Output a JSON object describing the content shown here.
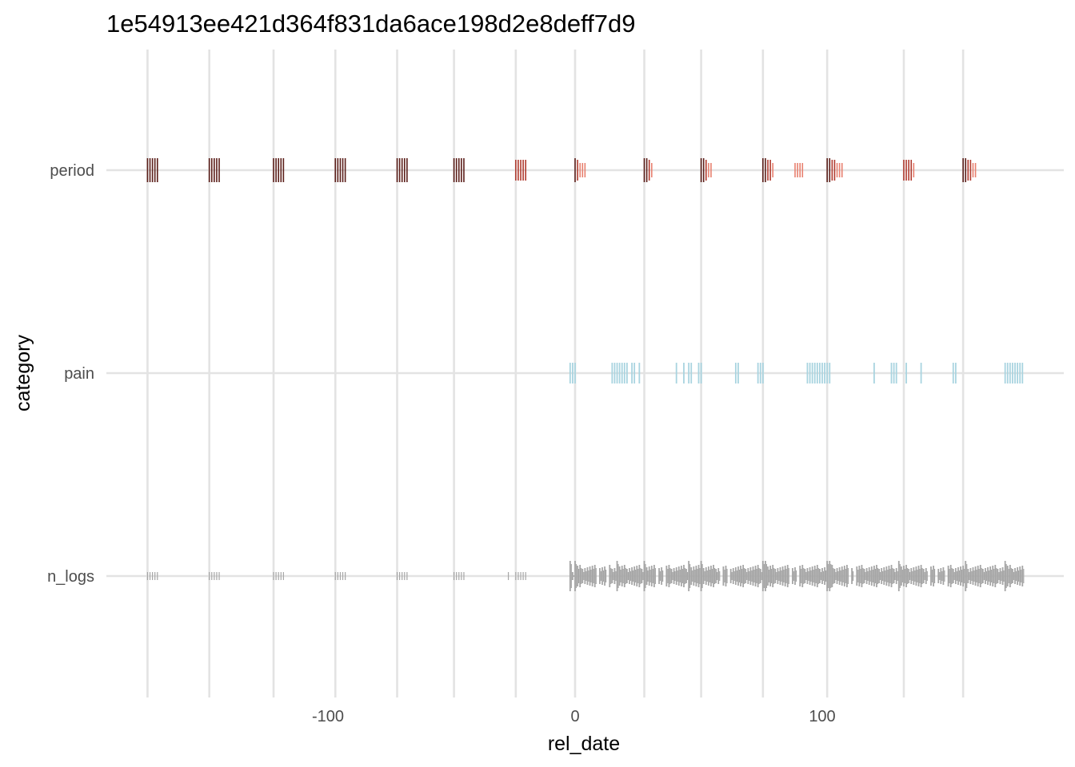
{
  "chart_data": {
    "type": "strip",
    "title": "1e54913ee421d364f831da6ace198d2e8deff7d9",
    "xlabel": "rel_date",
    "ylabel": "category",
    "categories": [
      "period",
      "pain",
      "n_logs"
    ],
    "xlim": [
      -174,
      198
    ],
    "x_ticks": [
      -100,
      0,
      100
    ],
    "x_tick_labels": [
      "-100",
      "0",
      "100"
    ],
    "cycle_starts": [
      -173,
      -148,
      -122,
      -97,
      -72,
      -49,
      -24,
      0,
      28,
      51,
      76,
      102,
      133,
      157
    ],
    "grid": true,
    "legend": "none",
    "colors": {
      "period_dark": "#5c1f1a",
      "period_mid": "#b03a2e",
      "period_light": "#e8806f",
      "pain": "#a9d4e0",
      "n_logs": "#a6a6a6",
      "grid": "#e3e3e3",
      "text": "#4d4d4d"
    },
    "series": [
      {
        "category": "period",
        "points": [
          {
            "x": -173,
            "intensity": 3
          },
          {
            "x": -172,
            "intensity": 3
          },
          {
            "x": -171,
            "intensity": 3
          },
          {
            "x": -170,
            "intensity": 3
          },
          {
            "x": -169,
            "intensity": 3
          },
          {
            "x": -148,
            "intensity": 3
          },
          {
            "x": -147,
            "intensity": 3
          },
          {
            "x": -146,
            "intensity": 3
          },
          {
            "x": -145,
            "intensity": 3
          },
          {
            "x": -144,
            "intensity": 3
          },
          {
            "x": -122,
            "intensity": 3
          },
          {
            "x": -121,
            "intensity": 3
          },
          {
            "x": -120,
            "intensity": 3
          },
          {
            "x": -119,
            "intensity": 3
          },
          {
            "x": -118,
            "intensity": 3
          },
          {
            "x": -97,
            "intensity": 3
          },
          {
            "x": -96,
            "intensity": 3
          },
          {
            "x": -95,
            "intensity": 3
          },
          {
            "x": -94,
            "intensity": 3
          },
          {
            "x": -93,
            "intensity": 3
          },
          {
            "x": -72,
            "intensity": 3
          },
          {
            "x": -71,
            "intensity": 3
          },
          {
            "x": -70,
            "intensity": 3
          },
          {
            "x": -69,
            "intensity": 3
          },
          {
            "x": -68,
            "intensity": 3
          },
          {
            "x": -49,
            "intensity": 3
          },
          {
            "x": -48,
            "intensity": 3
          },
          {
            "x": -47,
            "intensity": 3
          },
          {
            "x": -46,
            "intensity": 3
          },
          {
            "x": -45,
            "intensity": 3
          },
          {
            "x": -24,
            "intensity": 2
          },
          {
            "x": -23,
            "intensity": 2
          },
          {
            "x": -22,
            "intensity": 2
          },
          {
            "x": -21,
            "intensity": 2
          },
          {
            "x": -20,
            "intensity": 2
          },
          {
            "x": 0,
            "intensity": 3
          },
          {
            "x": 1,
            "intensity": 2
          },
          {
            "x": 2,
            "intensity": 1
          },
          {
            "x": 3,
            "intensity": 1
          },
          {
            "x": 4,
            "intensity": 1
          },
          {
            "x": 28,
            "intensity": 3
          },
          {
            "x": 29,
            "intensity": 3
          },
          {
            "x": 30,
            "intensity": 2
          },
          {
            "x": 31,
            "intensity": 1
          },
          {
            "x": 51,
            "intensity": 3
          },
          {
            "x": 52,
            "intensity": 3
          },
          {
            "x": 53,
            "intensity": 2
          },
          {
            "x": 54,
            "intensity": 1
          },
          {
            "x": 55,
            "intensity": 1
          },
          {
            "x": 76,
            "intensity": 3
          },
          {
            "x": 77,
            "intensity": 3
          },
          {
            "x": 78,
            "intensity": 2
          },
          {
            "x": 79,
            "intensity": 2
          },
          {
            "x": 80,
            "intensity": 1
          },
          {
            "x": 89,
            "intensity": 1
          },
          {
            "x": 90,
            "intensity": 1
          },
          {
            "x": 91,
            "intensity": 1
          },
          {
            "x": 92,
            "intensity": 1
          },
          {
            "x": 102,
            "intensity": 3
          },
          {
            "x": 103,
            "intensity": 3
          },
          {
            "x": 104,
            "intensity": 2
          },
          {
            "x": 105,
            "intensity": 2
          },
          {
            "x": 106,
            "intensity": 1
          },
          {
            "x": 107,
            "intensity": 1
          },
          {
            "x": 108,
            "intensity": 1
          },
          {
            "x": 133,
            "intensity": 2
          },
          {
            "x": 134,
            "intensity": 2
          },
          {
            "x": 135,
            "intensity": 2
          },
          {
            "x": 136,
            "intensity": 2
          },
          {
            "x": 137,
            "intensity": 1
          },
          {
            "x": 157,
            "intensity": 3
          },
          {
            "x": 158,
            "intensity": 3
          },
          {
            "x": 159,
            "intensity": 2
          },
          {
            "x": 160,
            "intensity": 2
          },
          {
            "x": 161,
            "intensity": 1
          },
          {
            "x": 162,
            "intensity": 1
          }
        ]
      },
      {
        "category": "pain",
        "x": [
          -2,
          -1,
          0,
          15,
          16,
          17,
          18,
          19,
          20,
          21,
          23,
          24,
          26,
          41,
          44,
          46,
          47,
          50,
          51,
          65,
          66,
          74,
          75,
          76,
          94,
          95,
          96,
          97,
          98,
          99,
          100,
          101,
          102,
          103,
          121,
          128,
          129,
          130,
          134,
          140,
          153,
          154,
          174,
          175,
          176,
          177,
          178,
          179,
          180,
          181
        ]
      },
      {
        "category": "n_logs",
        "pre_x": [
          -173,
          -172,
          -171,
          -170,
          -169,
          -148,
          -147,
          -146,
          -145,
          -144,
          -122,
          -121,
          -120,
          -119,
          -118,
          -97,
          -96,
          -95,
          -94,
          -93,
          -72,
          -71,
          -70,
          -69,
          -68,
          -49,
          -48,
          -47,
          -46,
          -45,
          -27,
          -24,
          -23,
          -22,
          -21,
          -20
        ],
        "pre_count": 1,
        "logged_from": -2,
        "logged_to": 181,
        "gaps": [
          9,
          13,
          33,
          36,
          59,
          62,
          87,
          90,
          111,
          113,
          143,
          146,
          150
        ],
        "peak_days": [
          -2,
          0,
          17,
          28,
          46,
          51,
          59,
          76,
          77,
          102,
          103,
          131,
          158,
          174
        ]
      }
    ]
  }
}
